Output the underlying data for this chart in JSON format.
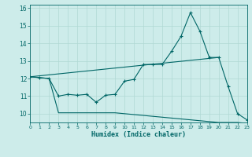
{
  "xlabel": "Humidex (Indice chaleur)",
  "bg_color": "#cdecea",
  "line_color": "#006666",
  "grid_color": "#b0d8d4",
  "x_ticks": [
    0,
    1,
    2,
    3,
    4,
    5,
    6,
    7,
    8,
    9,
    10,
    11,
    12,
    13,
    14,
    15,
    16,
    17,
    18,
    19,
    20,
    21,
    22,
    23
  ],
  "y_ticks": [
    10,
    11,
    12,
    13,
    14,
    15,
    16
  ],
  "xlim": [
    0,
    23
  ],
  "ylim": [
    9.5,
    16.2
  ],
  "series1_marked": {
    "x": [
      0,
      1,
      2,
      3,
      4,
      5,
      6,
      7,
      8,
      9,
      10,
      11,
      12,
      13,
      14,
      15,
      16,
      17,
      18,
      19,
      20,
      21,
      22,
      23
    ],
    "y": [
      12.1,
      12.05,
      12.0,
      11.0,
      11.1,
      11.05,
      11.1,
      10.65,
      11.05,
      11.1,
      11.85,
      11.95,
      12.8,
      12.8,
      12.8,
      13.55,
      14.4,
      15.75,
      14.7,
      13.2,
      13.2,
      11.55,
      10.0,
      9.65
    ]
  },
  "series2_flat": {
    "x": [
      0,
      1,
      2,
      3,
      4,
      5,
      6,
      7,
      8,
      9,
      10,
      11,
      12,
      13,
      14,
      15,
      16,
      17,
      18,
      19,
      20,
      21,
      22,
      23
    ],
    "y": [
      12.1,
      12.05,
      12.0,
      10.05,
      10.05,
      10.05,
      10.05,
      10.05,
      10.05,
      10.05,
      10.0,
      9.95,
      9.9,
      9.85,
      9.8,
      9.75,
      9.7,
      9.65,
      9.6,
      9.55,
      9.5,
      9.5,
      9.5,
      9.45
    ]
  },
  "series3_trend": {
    "x": [
      0,
      20
    ],
    "y": [
      12.1,
      13.2
    ]
  }
}
